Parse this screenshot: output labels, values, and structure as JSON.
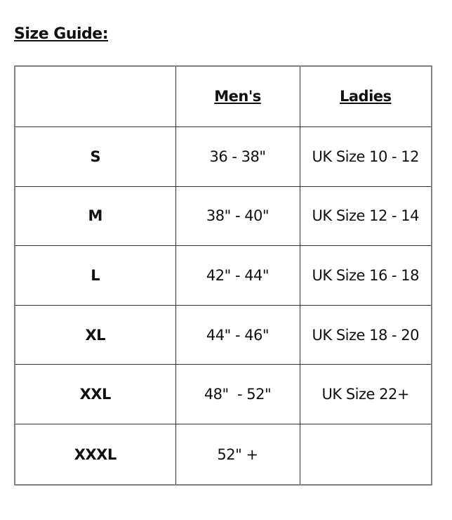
{
  "title": "Size Guide:",
  "headers": [
    "",
    "Men's",
    "Ladies"
  ],
  "rows": [
    {
      "size": "S",
      "mens": "36 - 38\"",
      "ladies": "UK Size 10 - 12"
    },
    {
      "size": "M",
      "mens": "38\" - 40\"",
      "ladies": "UK Size 12 - 14"
    },
    {
      "size": "L",
      "mens": "42\" - 44\"",
      "ladies": "UK Size 16 - 18"
    },
    {
      "size": "XL",
      "mens": "44\" - 46\"",
      "ladies": "UK Size 18 - 20"
    },
    {
      "size": "XXL",
      "mens": "48\"  - 52\"",
      "ladies": "UK Size 22+"
    },
    {
      "size": "XXXL",
      "mens": "52\" +",
      "ladies": ""
    }
  ]
}
